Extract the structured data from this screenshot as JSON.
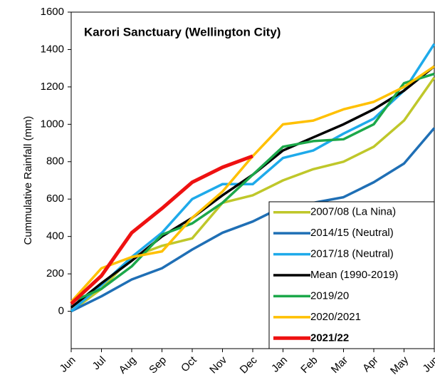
{
  "chart_data": {
    "type": "line",
    "title": "Karori Sanctuary (Wellington City)",
    "y_label": "Cummulative Rainfall (mm)",
    "categories": [
      "Jun",
      "Jul",
      "Aug",
      "Sep",
      "Oct",
      "Nov",
      "Dec",
      "Jan",
      "Feb",
      "Mar",
      "Apr",
      "May",
      "Jun"
    ],
    "ylim": [
      -200,
      1600
    ],
    "yticks": [
      0,
      200,
      400,
      600,
      800,
      1000,
      1200,
      1400,
      1600
    ],
    "grid": false,
    "legend": "lower right",
    "series": [
      {
        "name": "2007/08 (La Nina)",
        "color": "#bfc72a",
        "values": [
          0,
          120,
          290,
          350,
          390,
          580,
          620,
          700,
          760,
          800,
          880,
          1020,
          1250
        ]
      },
      {
        "name": "2014/15 (Neutral)",
        "color": "#1f6fb5",
        "values": [
          0,
          80,
          170,
          230,
          330,
          420,
          480,
          560,
          580,
          610,
          690,
          790,
          980
        ]
      },
      {
        "name": "2017/18 (Neutral)",
        "color": "#1eaaea",
        "values": [
          0,
          140,
          290,
          420,
          600,
          680,
          680,
          820,
          860,
          950,
          1030,
          1180,
          1430
        ]
      },
      {
        "name": "Mean (1990-2019)",
        "color": "#000000",
        "values": [
          20,
          150,
          270,
          400,
          500,
          620,
          730,
          860,
          930,
          1000,
          1080,
          1180,
          1310
        ]
      },
      {
        "name": "2019/20",
        "color": "#1ca84a",
        "values": [
          50,
          120,
          240,
          410,
          470,
          580,
          730,
          880,
          910,
          920,
          1000,
          1220,
          1270
        ]
      },
      {
        "name": "2020/2021",
        "color": "#ffc000",
        "values": [
          50,
          230,
          290,
          320,
          500,
          640,
          830,
          1000,
          1020,
          1080,
          1120,
          1200,
          1310
        ]
      },
      {
        "name": "2021/22",
        "color": "#ee1111",
        "values": [
          40,
          190,
          420,
          550,
          690,
          770,
          830,
          null,
          null,
          null,
          null,
          null,
          null
        ]
      }
    ]
  }
}
